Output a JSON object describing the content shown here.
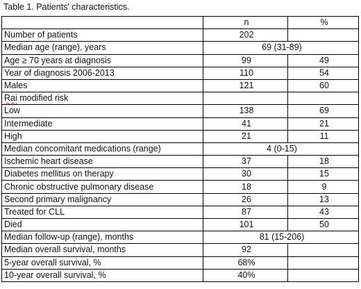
{
  "caption": "Table 1. Patients' characteristics.",
  "header": {
    "col_n": "n",
    "col_pct": "%"
  },
  "rows": [
    {
      "label": "Number of patients",
      "n": "202",
      "pct": ""
    },
    {
      "label": "Median age (range), years",
      "merged": "69 (31-89)"
    },
    {
      "label": "Age ≥ 70 years at diagnosis",
      "n": "99",
      "pct": "49"
    },
    {
      "label": "Year of diagnosis 2006-2013",
      "n": "110",
      "pct": "54"
    },
    {
      "label": "Males",
      "n": "121",
      "pct": "60"
    },
    {
      "label_spell": "Rai",
      "label_rest": " modified risk",
      "n": "",
      "pct": ""
    },
    {
      "label": "Low",
      "n": "138",
      "pct": "69"
    },
    {
      "label": "Intermediate",
      "n": "41",
      "pct": "21"
    },
    {
      "label": "High",
      "n": "21",
      "pct": "11"
    },
    {
      "label": "Median concomitant medications (range)",
      "merged": "4 (0-15)"
    },
    {
      "label": "Ischemic heart disease",
      "n": "37",
      "pct": "18"
    },
    {
      "label": "Diabetes mellitus on therapy",
      "n": "30",
      "pct": "15"
    },
    {
      "label": "Chronic obstructive pulmonary disease",
      "n": "18",
      "pct": "9"
    },
    {
      "label": "Second primary malignancy",
      "n": "26",
      "pct": "13"
    },
    {
      "label": "Treated for CLL",
      "n": "87",
      "pct": "43"
    },
    {
      "label": "Died",
      "n": "101",
      "pct": "50"
    },
    {
      "label": "Median follow-up (range), months",
      "merged": "81 (15-206)"
    },
    {
      "label": "Median overall survival, months",
      "n": "92",
      "pct": ""
    },
    {
      "label": "5-year overall survival, %",
      "n": "68%",
      "pct": ""
    },
    {
      "label": "10-year overall survival, %",
      "n": "40%",
      "pct": ""
    }
  ]
}
